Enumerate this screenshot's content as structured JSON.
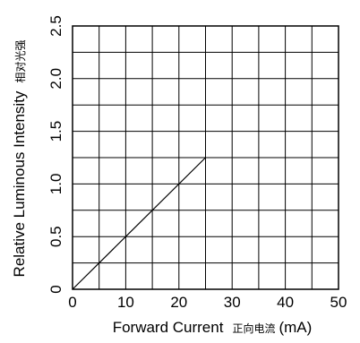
{
  "chart_data": {
    "type": "line",
    "xlabel": "Forward Current",
    "xlabel_cjk": "正向电流",
    "xlabel_unit": "(mA)",
    "ylabel": "Relative Luminous Intensity",
    "ylabel_cjk": "相对光强",
    "xlim": [
      0,
      50
    ],
    "ylim": [
      0,
      2.5
    ],
    "x_ticks": [
      "0",
      "10",
      "20",
      "30",
      "40",
      "50"
    ],
    "y_ticks": [
      "0",
      "0.5",
      "1.0",
      "1.5",
      "2.0",
      "2.5"
    ],
    "grid": true,
    "grid_x_step": 5,
    "grid_y_step": 0.25,
    "series": [
      {
        "x": [
          0,
          25
        ],
        "y": [
          0,
          1.25
        ]
      }
    ]
  }
}
